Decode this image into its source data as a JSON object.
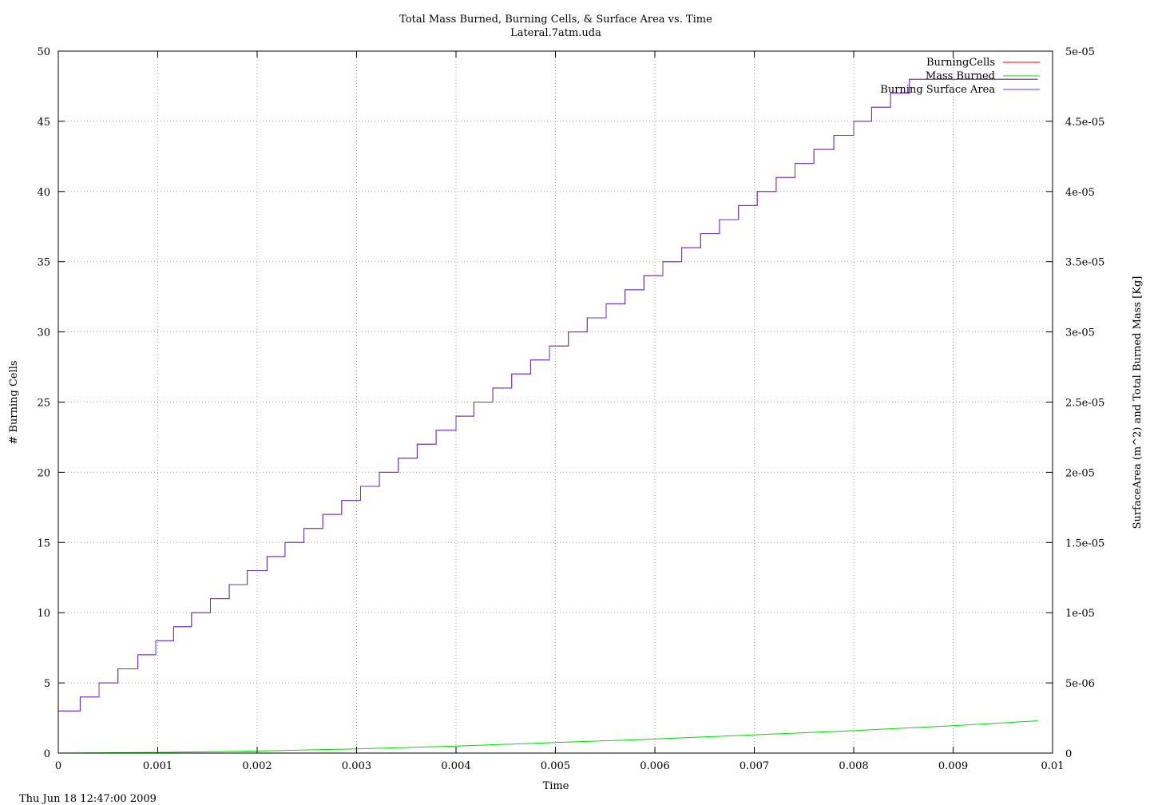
{
  "chart_data": {
    "type": "line",
    "title": "Total Mass Burned, Burning Cells, & Surface Area vs. Time",
    "subtitle": "Lateral.7atm.uda",
    "xlabel": "Time",
    "ylabel": "# Burning Cells",
    "y2label": "SurfaceArea (m^2) and Total Burned Mass [Kg]",
    "timestamp": "Thu Jun 18 12:47:00 2009",
    "xlim": [
      0,
      0.01
    ],
    "ylim": [
      0,
      50
    ],
    "y2lim": [
      0,
      5e-05
    ],
    "xticks": [
      "0",
      "0.001",
      "0.002",
      "0.003",
      "0.004",
      "0.005",
      "0.006",
      "0.007",
      "0.008",
      "0.009",
      "0.01"
    ],
    "yticks": [
      "0",
      "5",
      "10",
      "15",
      "20",
      "25",
      "30",
      "35",
      "40",
      "45",
      "50"
    ],
    "y2ticks": [
      "0",
      "5e-06",
      "1e-05",
      "1.5e-05",
      "2e-05",
      "2.5e-05",
      "3e-05",
      "3.5e-05",
      "4e-05",
      "4.5e-05",
      "5e-05"
    ],
    "grid": true,
    "legend_position": "top-right",
    "colors": {
      "burning_cells": "#ff0000",
      "mass_burned": "#00dd00",
      "surface_area": "#4040ff",
      "ylabel": "#ff0000"
    },
    "series": [
      {
        "name": "BurningCells",
        "axis": "left",
        "step": true,
        "x": [
          0,
          0.00022,
          0.00041,
          0.0006,
          0.0008,
          0.00098,
          0.00116,
          0.00134,
          0.00153,
          0.00172,
          0.0019,
          0.0021,
          0.00228,
          0.00247,
          0.00266,
          0.00285,
          0.00304,
          0.00323,
          0.00342,
          0.00361,
          0.0038,
          0.004,
          0.00418,
          0.00437,
          0.00456,
          0.00475,
          0.00494,
          0.00513,
          0.00532,
          0.00551,
          0.0057,
          0.00589,
          0.00608,
          0.00627,
          0.00646,
          0.00665,
          0.00684,
          0.00703,
          0.00722,
          0.00741,
          0.0076,
          0.0078,
          0.008,
          0.00818,
          0.00837,
          0.00856,
          0.00875,
          0.00894,
          0.00913,
          0.00932,
          0.0095,
          0.0097,
          0.00985
        ],
        "values": [
          3,
          4,
          5,
          6,
          7,
          8,
          9,
          10,
          11,
          12,
          13,
          14,
          15,
          16,
          17,
          18,
          19,
          20,
          21,
          22,
          23,
          24,
          25,
          26,
          27,
          28,
          29,
          30,
          31,
          32,
          33,
          34,
          35,
          36,
          37,
          38,
          39,
          40,
          41,
          42,
          43,
          44,
          45,
          46,
          47,
          48,
          48,
          48,
          48,
          48,
          48,
          48,
          48
        ]
      },
      {
        "name": "Mass Burned",
        "axis": "right",
        "step": false,
        "x": [
          0,
          0.001,
          0.002,
          0.003,
          0.004,
          0.005,
          0.006,
          0.007,
          0.008,
          0.009,
          0.00985
        ],
        "values": [
          0,
          5e-08,
          1.5e-07,
          3e-07,
          5e-07,
          7.5e-07,
          1e-06,
          1.3e-06,
          1.6e-06,
          1.95e-06,
          2.3e-06
        ]
      },
      {
        "name": "Burning Surface Area",
        "axis": "right",
        "step": true,
        "x": [
          0,
          0.00022,
          0.00041,
          0.0006,
          0.0008,
          0.00098,
          0.00116,
          0.00134,
          0.00153,
          0.00172,
          0.0019,
          0.0021,
          0.00228,
          0.00247,
          0.00266,
          0.00285,
          0.00304,
          0.00323,
          0.00342,
          0.00361,
          0.0038,
          0.004,
          0.00418,
          0.00437,
          0.00456,
          0.00475,
          0.00494,
          0.00513,
          0.00532,
          0.00551,
          0.0057,
          0.00589,
          0.00608,
          0.00627,
          0.00646,
          0.00665,
          0.00684,
          0.00703,
          0.00722,
          0.00741,
          0.0076,
          0.0078,
          0.008,
          0.00818,
          0.00837,
          0.00856,
          0.00875,
          0.00894,
          0.00913,
          0.00932,
          0.0095,
          0.0097,
          0.00985
        ],
        "values": [
          3e-06,
          4e-06,
          5e-06,
          6e-06,
          7e-06,
          8e-06,
          9e-06,
          1e-05,
          1.1e-05,
          1.2e-05,
          1.3e-05,
          1.4e-05,
          1.5e-05,
          1.6e-05,
          1.7e-05,
          1.8e-05,
          1.9e-05,
          2e-05,
          2.1e-05,
          2.2e-05,
          2.3e-05,
          2.4e-05,
          2.5e-05,
          2.6e-05,
          2.7e-05,
          2.8e-05,
          2.9e-05,
          3e-05,
          3.1e-05,
          3.2e-05,
          3.3e-05,
          3.4e-05,
          3.5e-05,
          3.6e-05,
          3.7e-05,
          3.8e-05,
          3.9e-05,
          4e-05,
          4.1e-05,
          4.2e-05,
          4.3e-05,
          4.4e-05,
          4.5e-05,
          4.6e-05,
          4.7e-05,
          4.8e-05,
          4.8e-05,
          4.8e-05,
          4.8e-05,
          4.8e-05,
          4.8e-05,
          4.8e-05,
          4.8e-05
        ]
      }
    ]
  }
}
